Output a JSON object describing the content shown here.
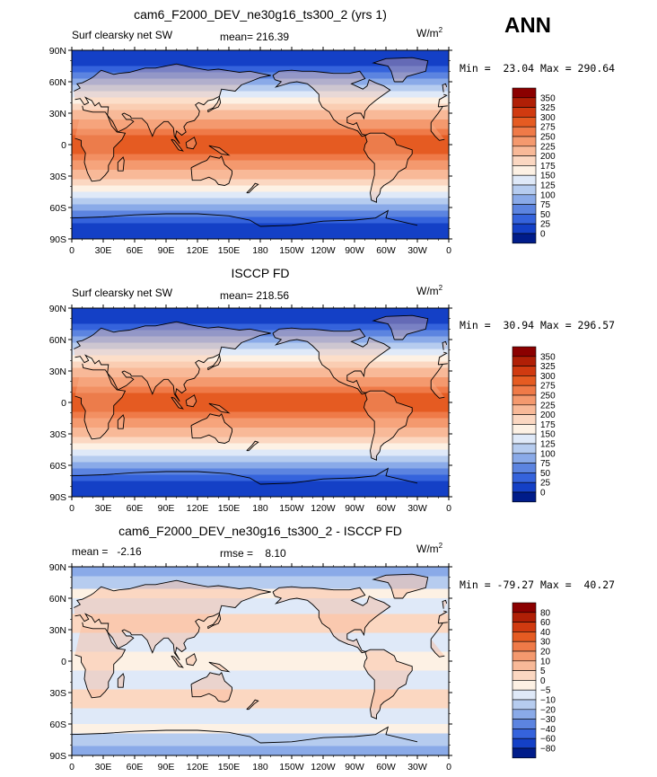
{
  "header": {
    "season": "ANN"
  },
  "axes": {
    "lat_labels": [
      "90N",
      "60N",
      "30N",
      "0",
      "30S",
      "60S",
      "90S"
    ],
    "lon_labels": [
      "0",
      "30E",
      "60E",
      "90E",
      "120E",
      "150E",
      "180",
      "150W",
      "120W",
      "90W",
      "60W",
      "30W",
      "0"
    ]
  },
  "panels": [
    {
      "title": "cam6_F2000_DEV_ne30g16_ts300_2 (yrs 1)",
      "left_label": "Surf clearsky net SW",
      "center_label": "mean= 216.39",
      "units": "W/m",
      "units_sup": "2",
      "minmax": "Min =  23.04 Max = 290.64",
      "colorbar": {
        "labels": [
          "350",
          "325",
          "300",
          "275",
          "250",
          "225",
          "200",
          "175",
          "150",
          "125",
          "100",
          "75",
          "50",
          "25",
          "0"
        ],
        "colors": [
          "#8b0000",
          "#b01f06",
          "#d03a10",
          "#e55b22",
          "#ef7a48",
          "#f4996e",
          "#f8b998",
          "#fbd7c1",
          "#fdf1e4",
          "#dfe9f8",
          "#b6ccef",
          "#8aaae8",
          "#5c84e0",
          "#3563dc",
          "#1440c6",
          "#001c8a"
        ]
      }
    },
    {
      "title": "ISCCP FD",
      "left_label": "Surf clearsky net SW",
      "center_label": "mean= 218.56",
      "units": "W/m",
      "units_sup": "2",
      "minmax": "Min =  30.94 Max = 296.57",
      "colorbar": {
        "labels": [
          "350",
          "325",
          "300",
          "275",
          "250",
          "225",
          "200",
          "175",
          "150",
          "125",
          "100",
          "75",
          "50",
          "25",
          "0"
        ],
        "colors": [
          "#8b0000",
          "#b01f06",
          "#d03a10",
          "#e55b22",
          "#ef7a48",
          "#f4996e",
          "#f8b998",
          "#fbd7c1",
          "#fdf1e4",
          "#dfe9f8",
          "#b6ccef",
          "#8aaae8",
          "#5c84e0",
          "#3563dc",
          "#1440c6",
          "#001c8a"
        ]
      }
    },
    {
      "title": "cam6_F2000_DEV_ne30g16_ts300_2 - ISCCP FD",
      "left_label": "mean =   -2.16",
      "center_label": "rmse =    8.10",
      "units": "W/m",
      "units_sup": "2",
      "minmax": "Min = -79.27 Max =  40.27",
      "colorbar": {
        "labels": [
          "80",
          "60",
          "40",
          "30",
          "20",
          "10",
          "5",
          "0",
          "−5",
          "−10",
          "−20",
          "−30",
          "−40",
          "−60",
          "−80"
        ],
        "colors": [
          "#8b0000",
          "#b01f06",
          "#d03a10",
          "#e55b22",
          "#ef7a48",
          "#f4996e",
          "#f8b998",
          "#fbd7c1",
          "#fdf1e4",
          "#dfe9f8",
          "#b6ccef",
          "#8aaae8",
          "#5c84e0",
          "#3563dc",
          "#1440c6",
          "#001c8a"
        ]
      }
    }
  ]
}
